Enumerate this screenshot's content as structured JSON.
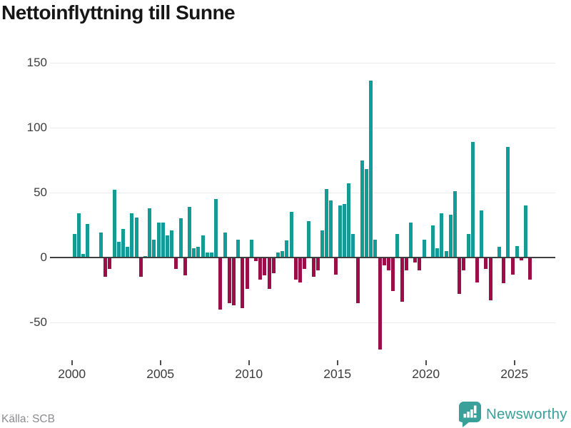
{
  "title": "Nettoinflyttning till Sunne",
  "source": "Källa: SCB",
  "brand": {
    "name": "Newsworthy"
  },
  "colors": {
    "positive_bar": "#129c95",
    "negative_bar": "#9d0d4a",
    "brand_teal": "#3aa09a",
    "title_text": "#161616",
    "axis_text": "#3d3d3d",
    "source_text": "#8b8b90",
    "gridline": "#eaeaea",
    "zero_line": "#3f3f3f"
  },
  "chart_data": {
    "type": "bar",
    "title": "Nettoinflyttning till Sunne",
    "x_start": "2000 Q1",
    "x_frequency": "quarterly",
    "values": [
      18,
      34,
      3,
      26,
      0,
      0,
      19,
      -15,
      -9,
      52,
      12,
      22,
      8,
      34,
      31,
      -15,
      1,
      38,
      14,
      27,
      27,
      17,
      21,
      -9,
      30,
      -14,
      39,
      7,
      8,
      17,
      4,
      4,
      45,
      -40,
      19,
      -35,
      -37,
      14,
      -39,
      -24,
      14,
      -3,
      -17,
      -14,
      -24,
      -12,
      4,
      5,
      13,
      35,
      -17,
      -19,
      -9,
      28,
      -15,
      -10,
      21,
      53,
      44,
      -13,
      40,
      41,
      57,
      18,
      -35,
      75,
      68,
      136,
      14,
      -71,
      -6,
      -10,
      -26,
      18,
      -34,
      -10,
      27,
      -4,
      -10,
      14,
      0,
      25,
      7,
      34,
      5,
      33,
      51,
      -28,
      -10,
      18,
      89,
      -19,
      36,
      -9,
      -33,
      0,
      8,
      -20,
      85,
      -13,
      9,
      -2,
      40,
      -17
    ],
    "xticks": [
      2000,
      2005,
      2010,
      2015,
      2020,
      2025
    ],
    "yticks": [
      150,
      100,
      50,
      0,
      -50
    ],
    "ylim": [
      -75,
      150
    ],
    "grid": true,
    "legend": false
  }
}
